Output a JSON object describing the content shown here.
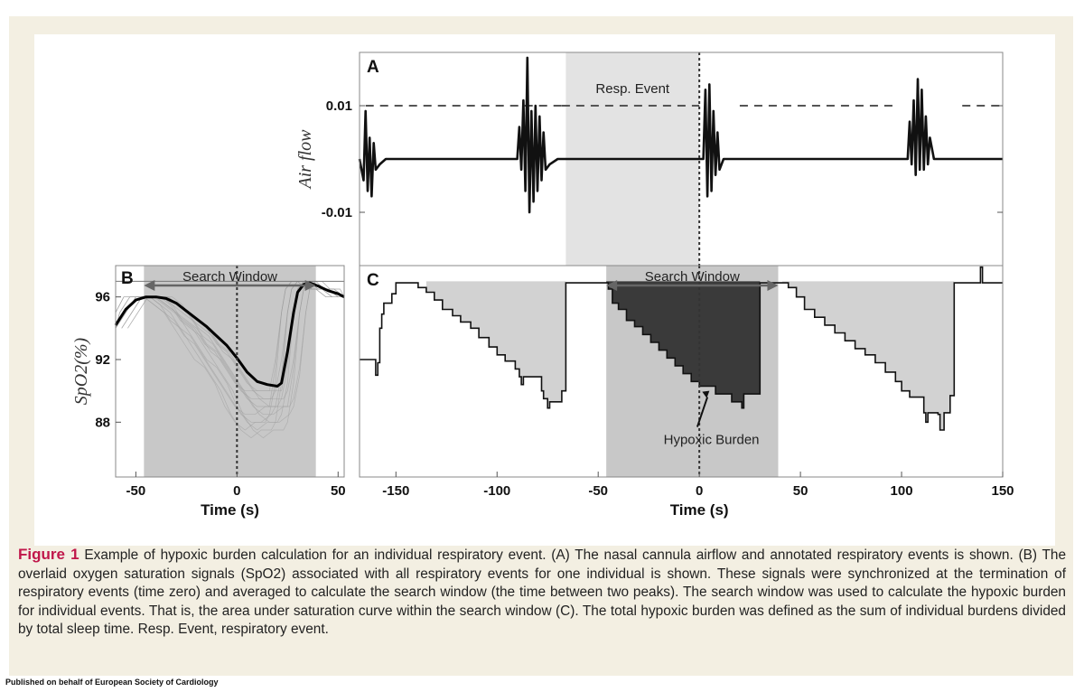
{
  "chart_data": [
    {
      "panel": "A",
      "type": "line",
      "ylabel": "Air flow",
      "ylim": [
        -0.02,
        0.02
      ],
      "yticks": [
        "0.01",
        "-0.01"
      ],
      "xlim": [
        -168,
        150
      ],
      "shaded_region": {
        "label": "Resp. Event",
        "x": [
          -66,
          0
        ]
      },
      "dashed_line": {
        "y": 0.01,
        "segments": [
          [
            -165,
            -68
          ],
          [
            -68,
            0
          ],
          [
            20,
            97
          ],
          [
            130,
            150
          ]
        ]
      },
      "series": [
        {
          "description_hidden": true,
          "values": [
            [
              -168,
              0.0
            ],
            [
              -166,
              -0.004
            ],
            [
              -165,
              0.009
            ],
            [
              -164,
              -0.006
            ],
            [
              -163,
              0.004
            ],
            [
              -162,
              -0.007
            ],
            [
              -161,
              0.003
            ],
            [
              -160,
              -0.002
            ],
            [
              -158,
              -0.001
            ],
            [
              -155,
              0.0
            ],
            [
              -90,
              0.0
            ],
            [
              -89,
              0.006
            ],
            [
              -88,
              -0.002
            ],
            [
              -87,
              0.011
            ],
            [
              -86,
              -0.006
            ],
            [
              -85,
              0.019
            ],
            [
              -84,
              -0.01
            ],
            [
              -83,
              0.009
            ],
            [
              -82,
              -0.008
            ],
            [
              -81,
              0.01
            ],
            [
              -80,
              -0.006
            ],
            [
              -79,
              0.008
            ],
            [
              -78,
              -0.004
            ],
            [
              -77,
              0.005
            ],
            [
              -76,
              -0.002
            ],
            [
              -74,
              -0.001
            ],
            [
              -70,
              0.0
            ],
            [
              2,
              0.0
            ],
            [
              3,
              0.013
            ],
            [
              4,
              -0.007
            ],
            [
              5,
              0.014
            ],
            [
              6,
              -0.006
            ],
            [
              7,
              0.009
            ],
            [
              8,
              -0.003
            ],
            [
              9,
              0.005
            ],
            [
              10,
              -0.002
            ],
            [
              12,
              0.0
            ],
            [
              103,
              0.0
            ],
            [
              104,
              0.007
            ],
            [
              105,
              -0.001
            ],
            [
              106,
              0.011
            ],
            [
              107,
              -0.003
            ],
            [
              108,
              0.015
            ],
            [
              109,
              -0.002
            ],
            [
              110,
              0.013
            ],
            [
              111,
              -0.002
            ],
            [
              112,
              0.008
            ],
            [
              113,
              -0.001
            ],
            [
              114,
              0.004
            ],
            [
              116,
              0.0
            ],
            [
              150,
              0.0
            ]
          ]
        }
      ]
    },
    {
      "panel": "B",
      "type": "line",
      "xlabel": "Time (s)",
      "ylabel": "SpO2(%)",
      "xlim": [
        -60,
        53
      ],
      "ylim": [
        84.5,
        98
      ],
      "xticks": [
        -50,
        0,
        50
      ],
      "yticks": [
        96,
        92,
        88
      ],
      "annotation": "Search Window",
      "search_window": [
        -46,
        39
      ],
      "series": [
        {
          "name": "average",
          "x": [
            -60,
            -55,
            -50,
            -45,
            -40,
            -35,
            -30,
            -25,
            -20,
            -15,
            -10,
            -5,
            0,
            5,
            10,
            15,
            20,
            22,
            25,
            28,
            30,
            33,
            36,
            40,
            45,
            50,
            53
          ],
          "y": [
            94.2,
            95.2,
            95.8,
            96.0,
            96.0,
            95.9,
            95.6,
            95.1,
            94.6,
            94.1,
            93.5,
            92.9,
            92.1,
            91.2,
            90.6,
            90.4,
            90.3,
            90.5,
            92.5,
            95.0,
            96.3,
            96.8,
            96.9,
            96.7,
            96.4,
            96.2,
            96.0
          ]
        }
      ]
    },
    {
      "panel": "C",
      "type": "area",
      "xlabel": "Time (s)",
      "xlim": [
        -168,
        150
      ],
      "xticks": [
        -150,
        -100,
        -50,
        0,
        50,
        100,
        150
      ],
      "annotation": "Search Window",
      "search_window": [
        -46,
        39
      ],
      "hypoxic_burden_label": "Hypoxic Burden",
      "baseline": 97,
      "series": [
        {
          "name": "SpO2",
          "x": [
            -168,
            -161,
            -160,
            -159,
            -158,
            -157,
            -156,
            -152,
            -150,
            -148,
            -144,
            -139,
            -135,
            -131,
            -127,
            -122,
            -118,
            -113,
            -109,
            -104,
            -100,
            -96,
            -91,
            -89,
            -88,
            -87,
            -85,
            -78,
            -77,
            -76,
            -75,
            -74,
            -68,
            -66,
            -55,
            -53,
            -52,
            -49,
            -46,
            -45,
            -43,
            -40,
            -36,
            -32,
            -28,
            -24,
            -20,
            -16,
            -12,
            -8,
            -4,
            0,
            4,
            8,
            12,
            16,
            18,
            20,
            21,
            22,
            30,
            32,
            33,
            34,
            38,
            41,
            44,
            48,
            52,
            57,
            62,
            67,
            72,
            77,
            82,
            87,
            92,
            97,
            100,
            104,
            108,
            111,
            112,
            113,
            114,
            118,
            119,
            121,
            124,
            126,
            130,
            133,
            138,
            139,
            140,
            141,
            150
          ],
          "y": [
            92,
            92,
            91,
            91.8,
            94,
            94.9,
            95.6,
            96.2,
            96.9,
            96.9,
            96.9,
            96.6,
            96.3,
            95.8,
            95.2,
            94.8,
            94.4,
            94.0,
            93.4,
            92.8,
            92.3,
            91.9,
            91.4,
            90.9,
            90.4,
            90.9,
            90.9,
            90.0,
            89.5,
            89.5,
            88.9,
            89.3,
            90.0,
            96.9,
            96.9,
            96.9,
            96.9,
            96.9,
            96.9,
            96.5,
            95.6,
            95.2,
            94.5,
            94.1,
            93.6,
            93.1,
            92.6,
            92.1,
            91.6,
            91.1,
            90.6,
            90.3,
            90.3,
            89.8,
            89.8,
            89.3,
            89.3,
            89.3,
            88.9,
            89.8,
            96.9,
            96.9,
            96.9,
            96.9,
            96.9,
            96.9,
            96.6,
            96.0,
            95.2,
            94.7,
            94.2,
            93.7,
            93.2,
            92.7,
            92.3,
            91.8,
            91.2,
            90.6,
            90.0,
            89.6,
            89.6,
            88.6,
            88.0,
            88.6,
            88.6,
            88.5,
            87.5,
            88.6,
            89.7,
            96.9,
            96.9,
            96.9,
            96.9,
            97.9,
            96.9,
            96.9,
            96.9
          ]
        }
      ]
    }
  ],
  "caption": {
    "label": "Figure 1",
    "text": " Example of hypoxic burden calculation for an individual respiratory event. (A) The nasal cannula airflow and annotated respiratory events is shown. (B) The overlaid oxygen saturation signals (SpO2) associated with all respiratory events for one individual is shown. These signals were synchronized at the termination of respiratory events (time zero) and averaged to calculate the search window (the time between two peaks). The search window was used to calculate the hypoxic burden for individual events. That is, the area under saturation curve within the search window (C). The total hypoxic burden was defined as the sum of individual burdens divided by total sleep time. Resp. Event, respiratory event."
  },
  "footer": "Published on behalf of European Society of Cardiology",
  "colors": {
    "panel_background": "#f3efe2",
    "caption_label": "#c0174a",
    "shade_light": "#e3e3e3",
    "shade_window": "#c8c8c8",
    "burden_dark": "#3a3a3a",
    "area_light": "#d2d2d2"
  }
}
